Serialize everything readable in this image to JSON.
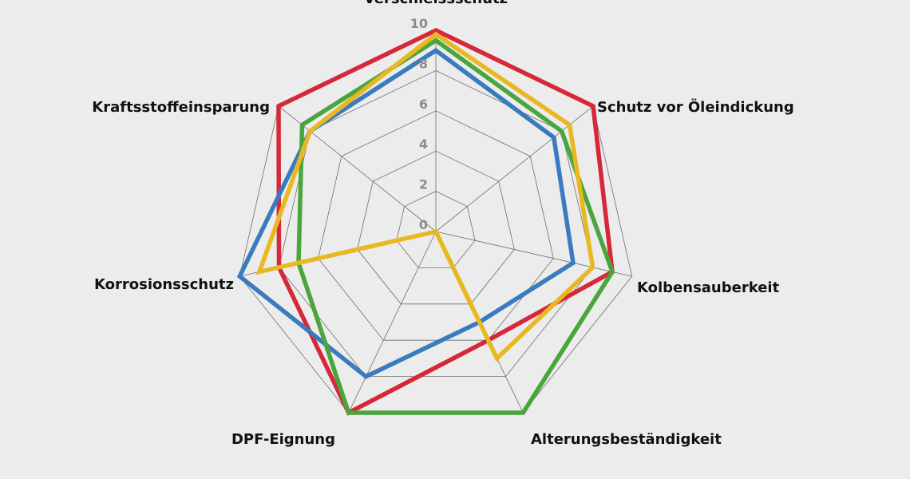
{
  "chart_data": {
    "type": "radar",
    "title": "",
    "categories": [
      "Verschleissschutz",
      "Schutz vor Öleindickung",
      "Kolbensauberkeit",
      "Alterungsbeständigkeit",
      "DPF-Eignung",
      "Korrosionsschutz",
      "Kraftsstoffeinsparung"
    ],
    "range": [
      0,
      10
    ],
    "ticks": [
      0,
      2,
      4,
      6,
      8,
      10
    ],
    "grid": true,
    "legend": "none",
    "series": [
      {
        "color": "#d62839",
        "values": [
          10,
          10,
          9,
          6,
          10,
          8,
          10
        ]
      },
      {
        "color": "#3a7bbf",
        "values": [
          9,
          7.5,
          7,
          5,
          8,
          10,
          8
        ]
      },
      {
        "color": "#4aa63c",
        "values": [
          9.5,
          8,
          9,
          10,
          10,
          7,
          8.5
        ]
      },
      {
        "color": "#e9b820",
        "values": [
          9.8,
          8.5,
          8,
          7,
          0,
          9,
          8
        ]
      }
    ]
  }
}
